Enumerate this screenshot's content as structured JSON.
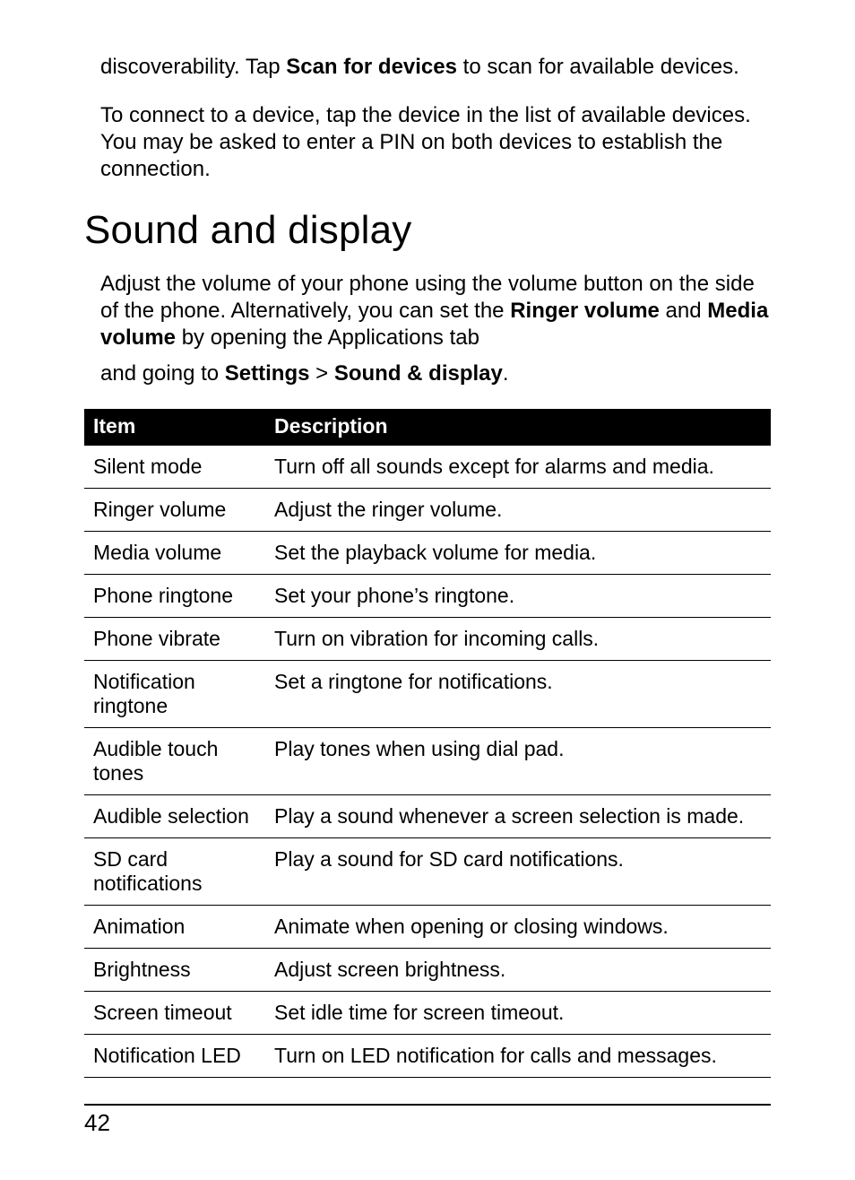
{
  "intro": {
    "p1_a": "discoverability. Tap ",
    "p1_bold": "Scan for devices",
    "p1_b": " to scan for available devices.",
    "p2": "To connect to a device, tap the device in the list of available devices. You may be asked to enter a PIN on both devices to establish the connection."
  },
  "section_title": "Sound and display",
  "body": {
    "p1_a": "Adjust the volume of your phone using the volume button on the side of the phone. Alternatively, you can set the ",
    "p1_b1": "Ringer volume",
    "p1_b": " and ",
    "p1_b2": "Media volume",
    "p1_c": " by opening the Applications tab",
    "p2_a": "and going to ",
    "p2_b1": "Settings",
    "p2_b": " > ",
    "p2_b2": "Sound & display",
    "p2_c": "."
  },
  "table": {
    "headers": {
      "item": "Item",
      "desc": "Description"
    },
    "rows": [
      {
        "item": "Silent mode",
        "desc": "Turn off all sounds except for alarms and media."
      },
      {
        "item": "Ringer volume",
        "desc": "Adjust the ringer volume."
      },
      {
        "item": "Media volume",
        "desc": "Set the playback volume for media."
      },
      {
        "item": "Phone ringtone",
        "desc": "Set your phone’s ringtone."
      },
      {
        "item": "Phone vibrate",
        "desc": "Turn on vibration for incoming calls."
      },
      {
        "item": "Notification ringtone",
        "desc": "Set a ringtone for notifications."
      },
      {
        "item": "Audible touch tones",
        "desc": "Play tones when using dial pad."
      },
      {
        "item": "Audible selection",
        "desc": "Play a sound whenever a screen selection is made."
      },
      {
        "item": "SD card notifications",
        "desc": "Play a sound for SD card notifications."
      },
      {
        "item": "Animation",
        "desc": "Animate when opening or closing windows."
      },
      {
        "item": "Brightness",
        "desc": "Adjust screen brightness."
      },
      {
        "item": "Screen timeout",
        "desc": "Set idle time for screen timeout."
      },
      {
        "item": "Notification LED",
        "desc": "Turn on LED notification for calls and messages."
      }
    ]
  },
  "page_number": "42"
}
